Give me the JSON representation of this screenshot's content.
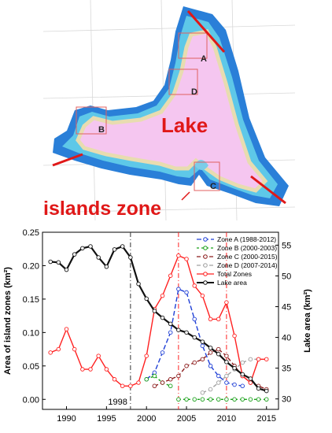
{
  "map": {
    "lake_label": "Lake",
    "islands_label": "islands zone",
    "zone_labels": [
      "A",
      "B",
      "C",
      "D"
    ]
  },
  "colors": {
    "zone_a": "#1f3fd6",
    "zone_b": "#18a018",
    "zone_c": "#8b1a1a",
    "zone_d": "#a0a0a0",
    "total": "#ff2020",
    "lake": "#111111",
    "lake_fill": "#f5c6f0",
    "water_shallow": "#5ec8e8",
    "water_deep": "#2a7fd8",
    "annotation": "#e01818"
  },
  "chart_data": {
    "type": "line",
    "title": "",
    "xlabel": "",
    "ylabel": "Area of island zones (km²)",
    "y2label": "Lake area (km²)",
    "xlim": [
      1987,
      2016.5
    ],
    "ylim": [
      -0.015,
      0.25
    ],
    "y2lim": [
      28.3,
      57.1
    ],
    "xticks": [
      1990,
      1995,
      2000,
      2005,
      2010,
      2015
    ],
    "yticks": [
      0.0,
      0.05,
      0.1,
      0.15,
      0.2,
      0.25
    ],
    "y2ticks": [
      30,
      35,
      40,
      45,
      50,
      55
    ],
    "ytick_labels": [
      "0.00",
      "0.05",
      "0.10",
      "0.15",
      "0.20",
      "0.25"
    ],
    "legend_position": "top-right",
    "annotation": "1998",
    "vlines": [
      1998,
      2004,
      2010
    ],
    "series": [
      {
        "name": "Zone A (1988-2012)",
        "key": "zone_a",
        "axis": "left",
        "dash": "6,3",
        "x": [
          2000,
          2001,
          2002,
          2003,
          2004,
          2005,
          2006,
          2007,
          2008,
          2009,
          2010,
          2011,
          2012
        ],
        "y": [
          0.03,
          0.04,
          0.07,
          0.1,
          0.165,
          0.16,
          0.12,
          0.08,
          0.05,
          0.035,
          0.025,
          0.022,
          0.02
        ]
      },
      {
        "name": "Zone B (2000-2003)",
        "key": "zone_b",
        "axis": "left",
        "dash": "3,3",
        "x": [
          2000,
          2001,
          2002,
          2003
        ],
        "y": [
          0.03,
          0.035,
          0.025,
          0.02
        ]
      },
      {
        "name": "Zone B (2000-2003)",
        "key": "zone_b",
        "axis": "left",
        "dash": "3,3",
        "legend": false,
        "x": [
          2004,
          2005,
          2006,
          2007,
          2008,
          2009,
          2010,
          2011,
          2012,
          2013,
          2014,
          2015
        ],
        "y": [
          0.0,
          0.0,
          0.0,
          0.0,
          0.0,
          0.0,
          0.0,
          0.0,
          0.0,
          0.0,
          0.0,
          0.0
        ]
      },
      {
        "name": "Zone C (2000-2015)",
        "key": "zone_c",
        "axis": "left",
        "dash": "5,3",
        "x": [
          2001,
          2002,
          2003,
          2004,
          2005,
          2006,
          2007,
          2008,
          2009,
          2010,
          2011,
          2012,
          2013,
          2014,
          2015
        ],
        "y": [
          0.02,
          0.025,
          0.03,
          0.035,
          0.05,
          0.055,
          0.06,
          0.07,
          0.075,
          0.065,
          0.05,
          0.035,
          0.025,
          0.02,
          0.015
        ]
      },
      {
        "name": "Zone D (2007-2014)",
        "key": "zone_d",
        "axis": "left",
        "dash": "5,3",
        "x": [
          2007,
          2008,
          2009,
          2010,
          2011,
          2012,
          2013,
          2014
        ],
        "y": [
          0.01,
          0.015,
          0.025,
          0.035,
          0.045,
          0.055,
          0.06,
          0.06
        ]
      },
      {
        "name": "Total Zones",
        "key": "total",
        "axis": "left",
        "dash": "",
        "x": [
          1988,
          1989,
          1990,
          1991,
          1992,
          1993,
          1994,
          1995,
          1996,
          1997,
          1998,
          1999,
          2000,
          2001,
          2002,
          2003,
          2004,
          2005,
          2006,
          2007,
          2008,
          2009,
          2010,
          2011,
          2012,
          2013,
          2014,
          2015
        ],
        "y": [
          0.07,
          0.075,
          0.105,
          0.075,
          0.045,
          0.045,
          0.065,
          0.045,
          0.03,
          0.02,
          0.02,
          0.025,
          0.065,
          0.135,
          0.155,
          0.185,
          0.215,
          0.21,
          0.17,
          0.155,
          0.12,
          0.12,
          0.145,
          0.095,
          0.035,
          0.025,
          0.06,
          0.06
        ]
      },
      {
        "name": "Lake area",
        "key": "lake",
        "axis": "right",
        "dash": "",
        "x": [
          1988,
          1989,
          1990,
          1991,
          1992,
          1993,
          1994,
          1995,
          1996,
          1997,
          1998,
          1999,
          2000,
          2001,
          2002,
          2003,
          2004,
          2005,
          2006,
          2007,
          2008,
          2009,
          2010,
          2011,
          2012,
          2013,
          2014,
          2015
        ],
        "y": [
          52.3,
          52.2,
          51,
          53.5,
          54.5,
          54.8,
          53,
          51.5,
          54.3,
          54.8,
          53,
          48.7,
          46.3,
          44.3,
          43.2,
          42.2,
          41.2,
          40.8,
          40,
          39.3,
          38.3,
          37.3,
          36,
          35,
          34,
          33.3,
          31.7,
          31.3
        ]
      }
    ]
  }
}
